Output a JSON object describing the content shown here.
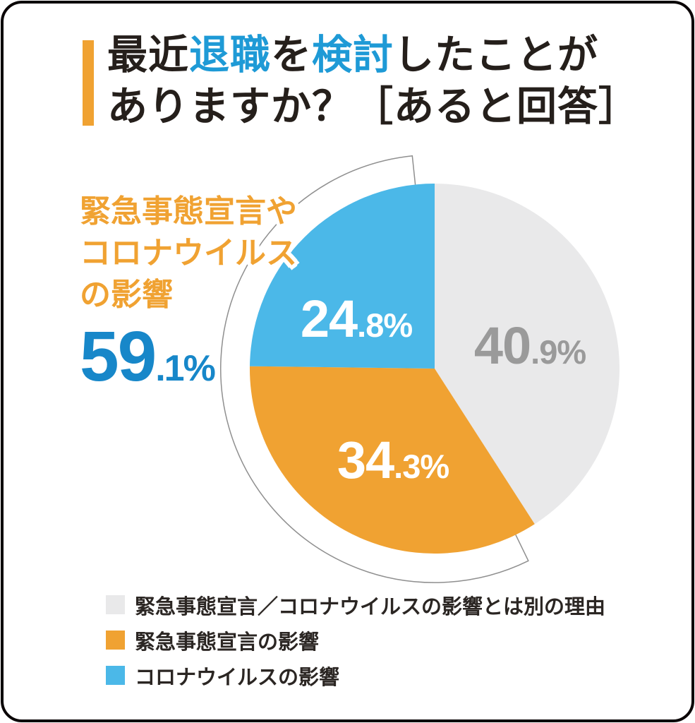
{
  "colors": {
    "accent-orange": "#F0A232",
    "title-blue": "#1E9AD6",
    "number-blue": "#1787C9",
    "dark-text": "#251F1B",
    "legend-text": "#2B2623",
    "outline-gray": "#8f8f8f"
  },
  "title": {
    "line1_parts": [
      {
        "text": "最近",
        "emphasis": false
      },
      {
        "text": "退職",
        "emphasis": true
      },
      {
        "text": "を",
        "emphasis": false
      },
      {
        "text": "検討",
        "emphasis": true
      },
      {
        "text": "したことが",
        "emphasis": false
      }
    ],
    "line2": "ありますか？［あると回答］"
  },
  "callout": {
    "lines": [
      "緊急事態宣言や",
      "コロナウイルス",
      "の影響"
    ]
  },
  "chart_data": {
    "type": "pie",
    "title": "最近退職を検討したことがありますか？［あると回答］",
    "start_angle_deg": 0,
    "direction": "clockwise",
    "legend_position": "bottom-left",
    "slices": [
      {
        "label": "緊急事態宣言／コロナウイルスの影響とは別の理由",
        "value": 40.9,
        "color": "#E9E9EA",
        "label_color": "#9A9A9A"
      },
      {
        "label": "緊急事態宣言の影響",
        "value": 34.3,
        "color": "#F0A232",
        "label_color": "#FFFFFF"
      },
      {
        "label": "コロナウイルスの影響",
        "value": 24.8,
        "color": "#4BB8E8",
        "label_color": "#FFFFFF"
      }
    ],
    "combined_callout": {
      "label": "緊急事態宣言やコロナウイルスの影響",
      "value": 59.1
    }
  }
}
